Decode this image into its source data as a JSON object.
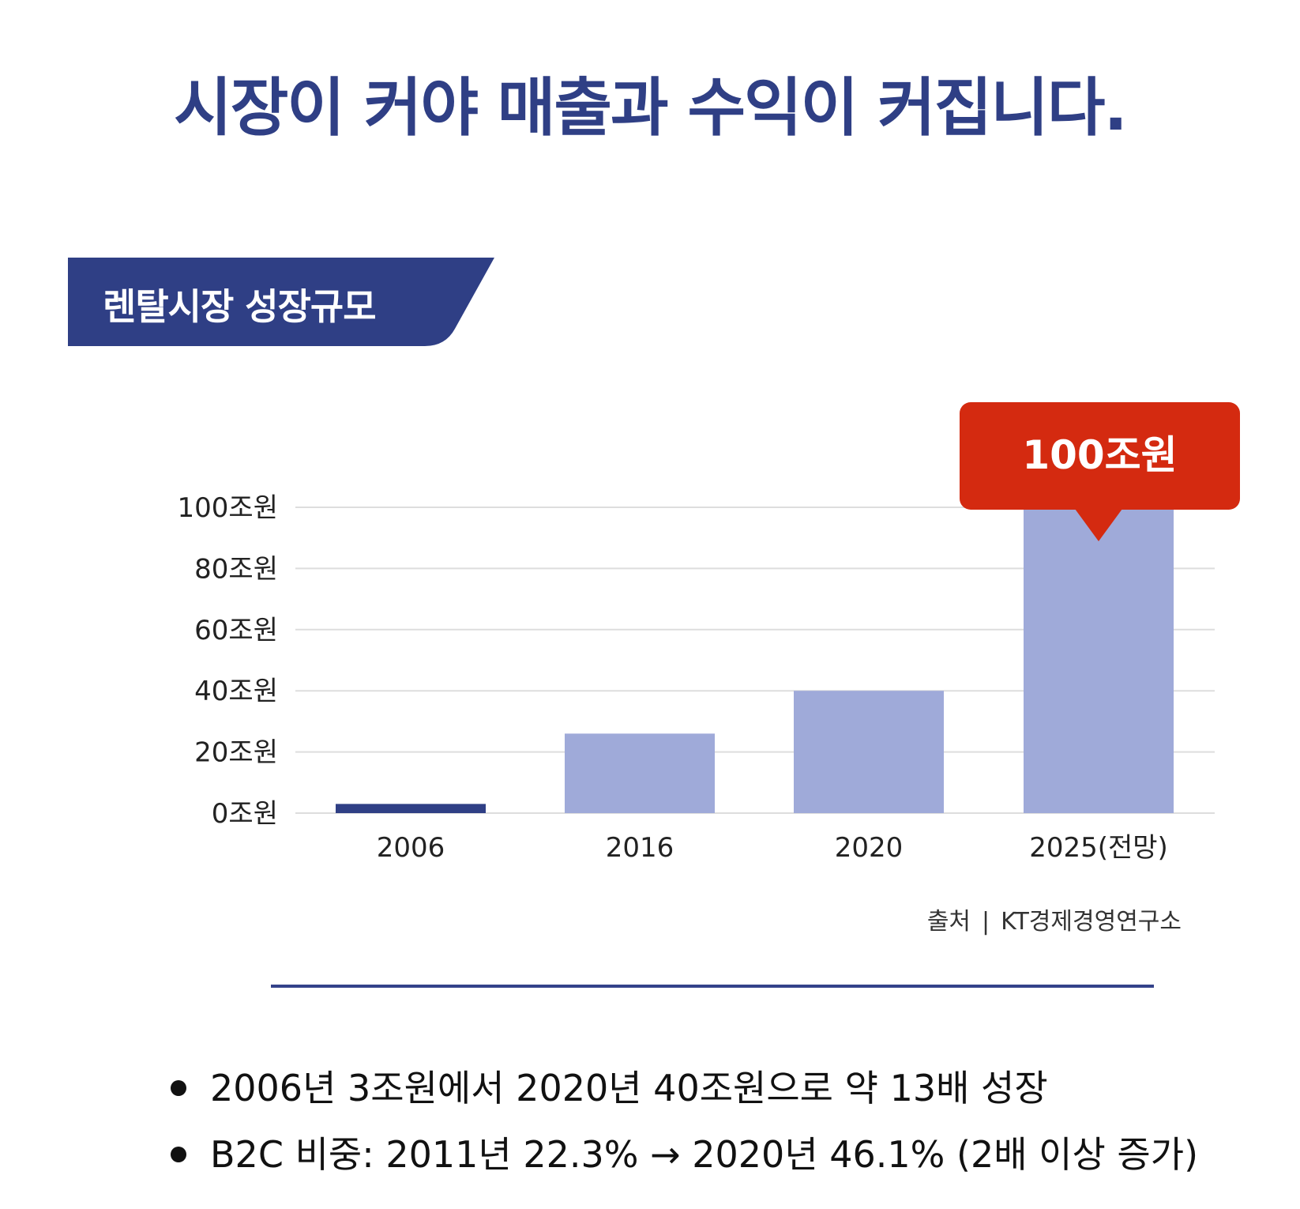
{
  "headline": "시장이 커야 매출과 수익이 커집니다.",
  "section_label": "렌탈시장 성장규모",
  "chart_data": {
    "type": "bar",
    "categories": [
      "2006",
      "2016",
      "2020",
      "2025(전망)"
    ],
    "values": [
      3,
      26,
      40,
      100
    ],
    "unit": "조원",
    "ylim": [
      0,
      100
    ],
    "yticks": [
      "0조원",
      "20조원",
      "40조원",
      "60조원",
      "80조원",
      "100조원"
    ],
    "grid": true,
    "highlight_category": "2025(전망)",
    "callout_label": "100조원",
    "colors": {
      "bar": "#9faad9",
      "bar_first": "#2f3f85",
      "callout": "#d42a10",
      "grid": "#dddddd"
    }
  },
  "source": {
    "label": "출처",
    "separator": "|",
    "name": "KT경제경영연구소"
  },
  "bullets": [
    "2006년 3조원에서 2020년 40조원으로 약 13배 성장",
    "B2C 비중: 2011년 22.3% → 2020년 46.1% (2배 이상 증가)"
  ],
  "colors": {
    "accent": "#2f3f85",
    "divider": "#34428a"
  }
}
